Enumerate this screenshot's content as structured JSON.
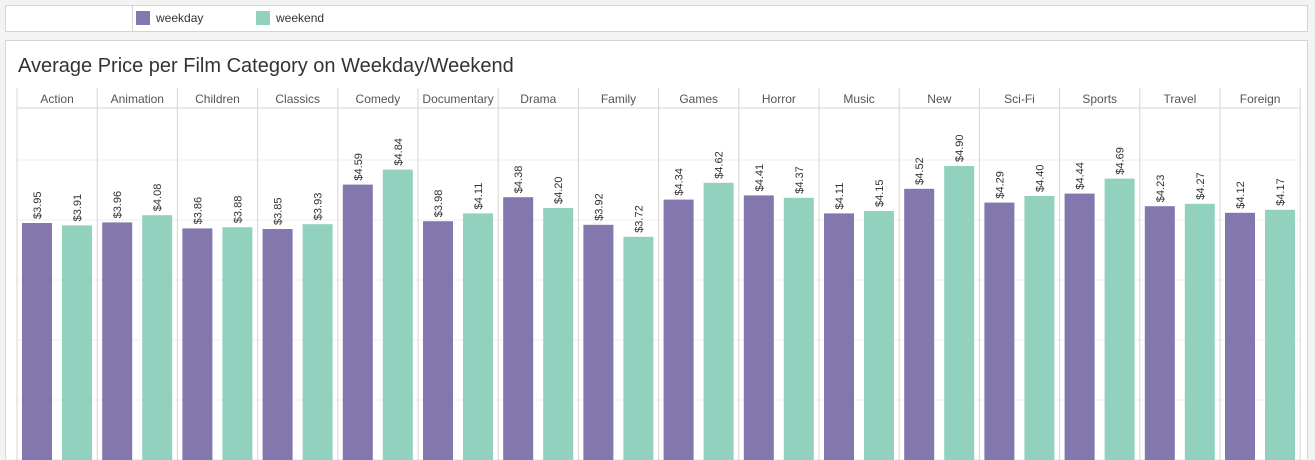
{
  "legend": {
    "items": [
      {
        "label": "weekday",
        "color": "#8377ad"
      },
      {
        "label": "weekend",
        "color": "#93d1bf"
      }
    ]
  },
  "chart_data": {
    "type": "bar",
    "title": "Average Price per Film Category on Weekday/Weekend",
    "categories": [
      "Action",
      "Animation",
      "Children",
      "Classics",
      "Comedy",
      "Documentary",
      "Drama",
      "Family",
      "Games",
      "Horror",
      "Music",
      "New",
      "Sci-Fi",
      "Sports",
      "Travel",
      "Foreign"
    ],
    "series": [
      {
        "name": "weekday",
        "color": "#8377ad",
        "values": [
          3.95,
          3.96,
          3.86,
          3.85,
          4.59,
          3.98,
          4.38,
          3.92,
          4.34,
          4.41,
          4.11,
          4.52,
          4.29,
          4.44,
          4.23,
          4.12
        ],
        "labels": [
          "$3.95",
          "$3.96",
          "$3.86",
          "$3.85",
          "$4.59",
          "$3.98",
          "$4.38",
          "$3.92",
          "$4.34",
          "$4.41",
          "$4.11",
          "$4.52",
          "$4.29",
          "$4.44",
          "$4.23",
          "$4.12"
        ]
      },
      {
        "name": "weekend",
        "color": "#93d1bf",
        "values": [
          3.91,
          4.08,
          3.88,
          3.93,
          4.84,
          4.11,
          4.2,
          3.72,
          4.62,
          4.37,
          4.15,
          4.9,
          4.4,
          4.69,
          4.27,
          4.17
        ],
        "labels": [
          "$3.91",
          "$4.08",
          "$3.88",
          "$3.93",
          "$4.84",
          "$4.11",
          "$4.20",
          "$3.72",
          "$4.62",
          "$4.37",
          "$4.15",
          "$4.90",
          "$4.40",
          "$4.69",
          "$4.27",
          "$4.17"
        ]
      }
    ],
    "ylim": [
      0,
      5.7
    ],
    "grid": true,
    "legend_position": "top"
  }
}
